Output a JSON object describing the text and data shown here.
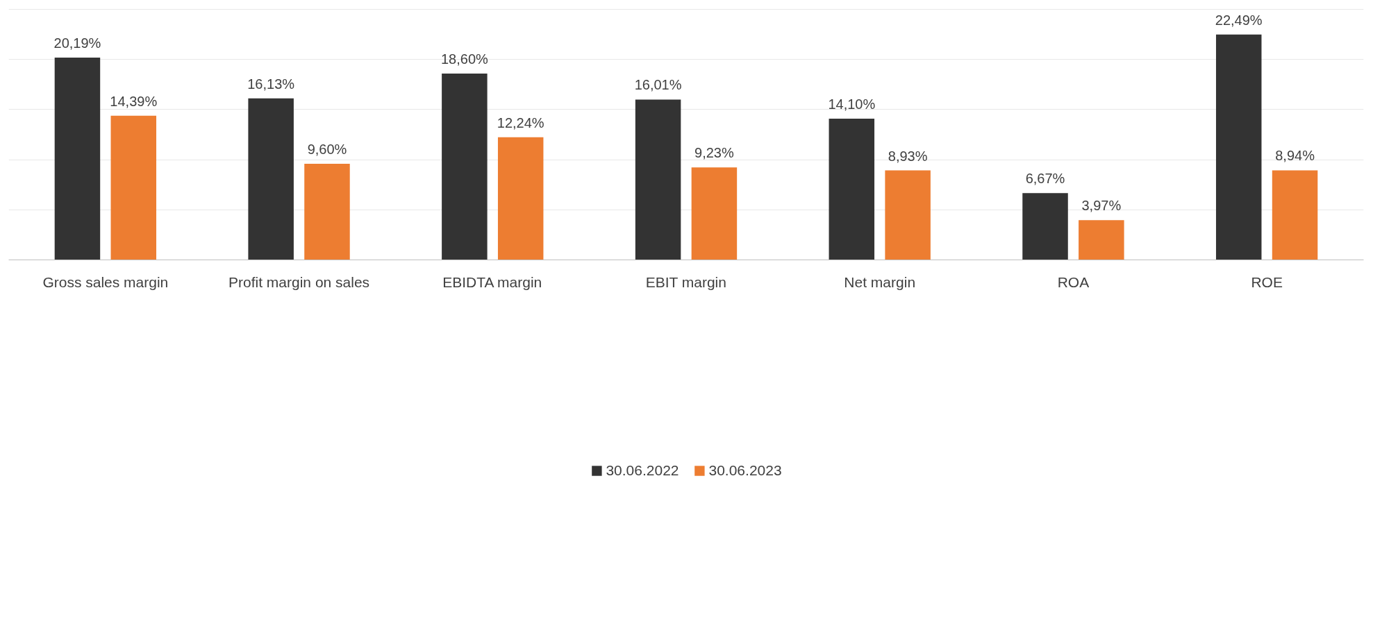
{
  "chart_data": {
    "type": "bar",
    "categories": [
      "Gross sales margin",
      "Profit margin on sales",
      "EBIDTA margin",
      "EBIT margin",
      "Net margin",
      "ROA",
      "ROE"
    ],
    "series": [
      {
        "name": "30.06.2022",
        "color": "#333333",
        "values": [
          20.19,
          16.13,
          18.6,
          16.01,
          14.1,
          6.67,
          22.49
        ],
        "value_labels": [
          "20,19%",
          "16,13%",
          "18,60%",
          "16,01%",
          "14,10%",
          "6,67%",
          "22,49%"
        ]
      },
      {
        "name": "30.06.2023",
        "color": "#ed7d31",
        "values": [
          14.39,
          9.6,
          12.24,
          9.23,
          8.93,
          3.97,
          8.94
        ],
        "value_labels": [
          "14,39%",
          "9,60%",
          "12,24%",
          "9,23%",
          "8,93%",
          "3,97%",
          "8,94%"
        ]
      }
    ],
    "grid": "y",
    "legend": "bottom",
    "tick_labels": "x"
  }
}
